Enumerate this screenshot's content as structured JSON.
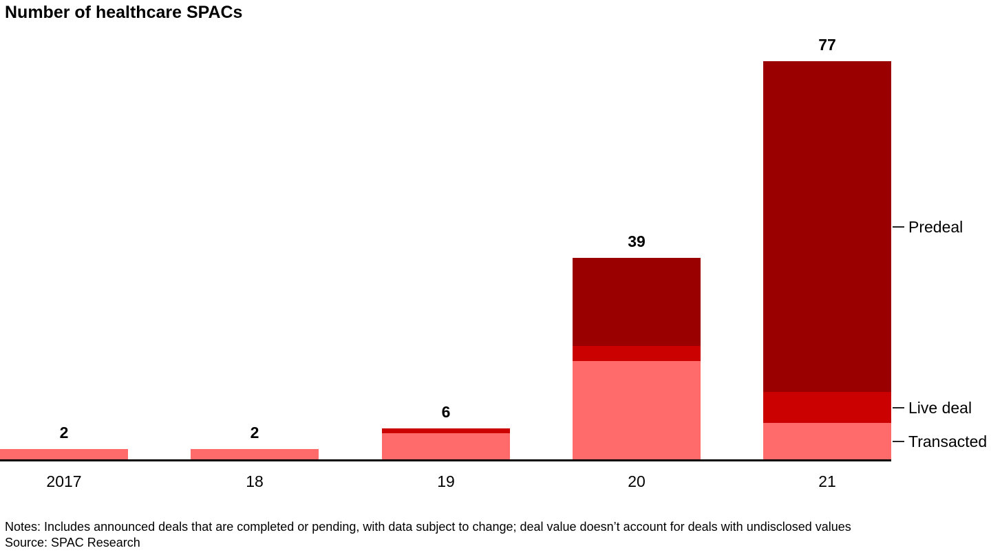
{
  "chart_data": {
    "type": "bar",
    "stacked": true,
    "title": "Number of healthcare SPACs",
    "categories": [
      "2017",
      "18",
      "19",
      "20",
      "21"
    ],
    "series": [
      {
        "name": "Transacted",
        "color": "#ff6a6a",
        "values": [
          2,
          2,
          5,
          19,
          7
        ]
      },
      {
        "name": "Live deal",
        "color": "#cb0000",
        "values": [
          0,
          0,
          1,
          3,
          6
        ]
      },
      {
        "name": "Predeal",
        "color": "#9a0000",
        "values": [
          0,
          0,
          0,
          17,
          64
        ]
      }
    ],
    "totals": [
      2,
      2,
      6,
      39,
      77
    ],
    "ylim": [
      0,
      77
    ],
    "grid": false,
    "axis_color": "#000000",
    "legend_position": "right-of-last-bar",
    "legend_labels_top_to_bottom": [
      "Predeal",
      "Live deal",
      "Transacted"
    ]
  },
  "footer": {
    "notes": "Notes: Includes announced deals that are completed or pending, with data subject to change; deal value doesn’t account for deals with undisclosed values",
    "source": "Source: SPAC Research"
  }
}
